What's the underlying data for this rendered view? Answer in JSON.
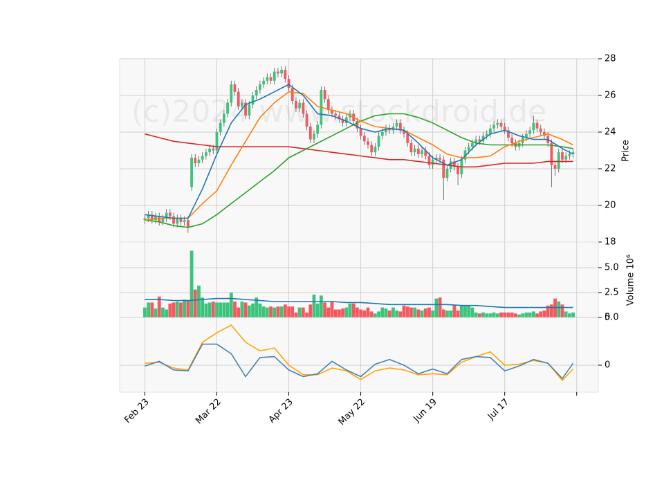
{
  "chart_data": [
    {
      "type": "candlestick",
      "ylabel": "Price",
      "watermark": "(c)2024 www.stockdroid.de",
      "up_color": "#3cc47c",
      "down_color": "#f5585e",
      "wick_color": "#555555",
      "xlim": [
        -7,
        126
      ],
      "ylim": [
        18,
        28
      ],
      "yticks": [
        18,
        20,
        22,
        24,
        26,
        28
      ],
      "grid": true,
      "open": [
        19.2,
        19.3,
        19.5,
        19.2,
        19.4,
        19.1,
        19.3,
        19.6,
        19.4,
        19.0,
        19.3,
        19.1,
        19.2,
        21.0,
        22.6,
        22.3,
        22.5,
        22.7,
        22.9,
        23.1,
        23.0,
        24.0,
        24.5,
        25.0,
        25.6,
        26.6,
        26.2,
        25.4,
        25.6,
        24.9,
        25.5,
        26.0,
        26.3,
        26.6,
        26.8,
        27.0,
        26.8,
        27.3,
        27.2,
        27.4,
        26.9,
        26.4,
        25.7,
        25.3,
        25.6,
        25.0,
        24.3,
        23.6,
        23.9,
        24.4,
        26.3,
        25.8,
        25.2,
        25.0,
        24.9,
        24.7,
        24.5,
        24.8,
        25.0,
        24.6,
        24.2,
        23.8,
        23.5,
        23.3,
        22.9,
        23.2,
        23.8,
        24.0,
        24.2,
        24.1,
        24.3,
        24.5,
        24.1,
        23.9,
        23.4,
        22.9,
        23.1,
        22.8,
        23.0,
        22.7,
        22.2,
        22.5,
        22.6,
        22.5,
        21.5,
        22.0,
        22.4,
        22.1,
        21.7,
        22.5,
        23.0,
        23.2,
        23.4,
        23.6,
        23.5,
        23.8,
        23.9,
        24.2,
        24.4,
        24.5,
        24.3,
        24.1,
        23.7,
        23.4,
        23.2,
        23.4,
        23.7,
        23.9,
        24.1,
        24.5,
        24.2,
        24.0,
        23.8,
        23.4,
        22.2,
        22.0,
        22.9,
        22.5,
        22.7,
        22.8
      ],
      "high": [
        19.5,
        19.7,
        19.7,
        19.6,
        19.6,
        19.5,
        19.8,
        19.8,
        19.6,
        19.5,
        19.5,
        19.4,
        19.4,
        22.8,
        22.8,
        22.7,
        22.9,
        23.1,
        23.3,
        23.3,
        24.2,
        24.7,
        25.2,
        25.8,
        26.8,
        26.8,
        26.4,
        25.8,
        25.8,
        25.7,
        26.2,
        26.5,
        26.8,
        27.0,
        27.2,
        27.2,
        27.5,
        27.5,
        27.6,
        27.6,
        27.1,
        26.6,
        25.9,
        25.8,
        25.8,
        25.2,
        24.5,
        24.1,
        24.6,
        26.5,
        26.5,
        26.0,
        25.4,
        25.2,
        25.1,
        24.9,
        25.0,
        25.2,
        25.2,
        24.8,
        24.4,
        24.0,
        23.7,
        23.5,
        23.4,
        24.0,
        24.2,
        24.4,
        24.4,
        24.5,
        24.7,
        24.7,
        24.3,
        24.1,
        23.6,
        23.3,
        23.3,
        23.2,
        23.2,
        22.9,
        22.7,
        22.8,
        22.8,
        22.7,
        22.2,
        22.6,
        22.6,
        22.3,
        22.7,
        23.2,
        23.4,
        23.6,
        23.8,
        23.8,
        24.0,
        24.1,
        24.4,
        24.6,
        24.7,
        24.7,
        24.5,
        24.3,
        23.9,
        23.6,
        23.6,
        23.9,
        24.1,
        24.3,
        24.9,
        24.7,
        24.4,
        24.2,
        24.0,
        23.6,
        22.4,
        23.1,
        23.1,
        22.9,
        23.0,
        23.1
      ],
      "low": [
        19.0,
        19.1,
        19.0,
        19.0,
        18.9,
        18.9,
        19.1,
        19.2,
        18.8,
        18.8,
        18.9,
        18.9,
        18.5,
        20.8,
        22.1,
        22.1,
        22.3,
        22.5,
        22.7,
        22.8,
        22.8,
        23.8,
        24.3,
        24.8,
        25.4,
        26.0,
        25.2,
        25.2,
        24.7,
        24.7,
        25.3,
        25.8,
        26.1,
        26.4,
        26.6,
        26.6,
        26.6,
        27.0,
        27.0,
        26.7,
        26.2,
        25.5,
        25.1,
        25.1,
        24.8,
        24.1,
        23.4,
        23.4,
        23.7,
        24.2,
        25.6,
        25.0,
        24.8,
        24.7,
        24.5,
        24.3,
        24.3,
        24.6,
        24.4,
        24.0,
        23.6,
        23.3,
        23.1,
        22.7,
        22.7,
        23.0,
        23.6,
        23.8,
        23.9,
        23.9,
        24.1,
        23.9,
        23.7,
        23.2,
        22.7,
        22.7,
        22.6,
        22.6,
        22.5,
        22.0,
        22.0,
        22.3,
        22.3,
        20.3,
        21.3,
        21.8,
        21.9,
        21.1,
        21.5,
        22.3,
        22.8,
        23.0,
        23.2,
        23.3,
        23.3,
        23.6,
        23.7,
        24.0,
        24.2,
        24.1,
        23.9,
        23.5,
        23.2,
        23.0,
        23.0,
        23.2,
        23.5,
        23.7,
        23.9,
        24.0,
        23.8,
        23.6,
        23.2,
        21.0,
        21.6,
        21.8,
        22.3,
        22.3,
        22.5,
        22.6
      ],
      "close": [
        19.3,
        19.5,
        19.2,
        19.4,
        19.1,
        19.3,
        19.6,
        19.4,
        19.0,
        19.3,
        19.1,
        19.2,
        18.8,
        22.6,
        22.3,
        22.5,
        22.7,
        22.9,
        23.1,
        23.0,
        24.0,
        24.5,
        25.0,
        25.6,
        26.6,
        26.2,
        25.4,
        25.6,
        24.9,
        25.5,
        26.0,
        26.3,
        26.6,
        26.8,
        27.0,
        26.8,
        27.3,
        27.2,
        27.4,
        26.9,
        26.4,
        25.7,
        25.3,
        25.6,
        25.0,
        24.3,
        23.6,
        23.9,
        24.4,
        26.3,
        25.8,
        25.2,
        25.0,
        24.9,
        24.7,
        24.5,
        24.8,
        25.0,
        24.6,
        24.2,
        23.8,
        23.5,
        23.3,
        22.9,
        23.2,
        23.8,
        24.0,
        24.2,
        24.1,
        24.3,
        24.5,
        24.1,
        23.9,
        23.4,
        22.9,
        23.1,
        22.8,
        23.0,
        22.7,
        22.2,
        22.5,
        22.6,
        22.5,
        21.5,
        22.0,
        22.4,
        22.1,
        21.7,
        22.5,
        23.0,
        23.2,
        23.4,
        23.6,
        23.5,
        23.8,
        23.9,
        24.2,
        24.4,
        24.5,
        24.3,
        24.1,
        23.7,
        23.4,
        23.2,
        23.4,
        23.7,
        23.9,
        24.1,
        24.5,
        24.2,
        24.0,
        23.8,
        23.4,
        22.2,
        22.0,
        22.9,
        22.5,
        22.7,
        22.8,
        22.9
      ],
      "line_x": [
        0,
        4,
        8,
        12,
        16,
        20,
        24,
        28,
        32,
        36,
        40,
        44,
        48,
        52,
        56,
        60,
        64,
        68,
        72,
        76,
        80,
        84,
        88,
        92,
        96,
        100,
        104,
        108,
        112,
        116,
        119
      ],
      "series": [
        {
          "color": "#d62728",
          "values": [
            23.9,
            23.7,
            23.5,
            23.4,
            23.3,
            23.2,
            23.2,
            23.2,
            23.2,
            23.2,
            23.2,
            23.1,
            23.0,
            22.9,
            22.8,
            22.7,
            22.6,
            22.5,
            22.5,
            22.4,
            22.3,
            22.2,
            22.1,
            22.1,
            22.2,
            22.3,
            22.3,
            22.3,
            22.4,
            22.4,
            22.4
          ]
        },
        {
          "color": "#2ca02c",
          "values": [
            19.2,
            19.1,
            18.9,
            18.8,
            19.0,
            19.5,
            20.1,
            20.7,
            21.3,
            21.9,
            22.6,
            23.0,
            23.4,
            23.8,
            24.2,
            24.6,
            24.9,
            25.0,
            25.0,
            24.8,
            24.5,
            24.1,
            23.7,
            23.4,
            23.3,
            23.3,
            23.3,
            23.3,
            23.3,
            23.2,
            23.1
          ]
        },
        {
          "color": "#ff7f0e",
          "values": [
            19.2,
            19.3,
            19.3,
            19.3,
            20.1,
            20.8,
            22.2,
            23.5,
            24.8,
            25.6,
            26.2,
            26.1,
            25.4,
            25.2,
            25.0,
            24.6,
            24.3,
            24.2,
            24.1,
            23.7,
            23.3,
            22.8,
            22.6,
            22.6,
            22.7,
            23.2,
            23.5,
            23.7,
            23.9,
            23.6,
            23.3
          ]
        },
        {
          "color": "#1f77b4",
          "values": [
            19.5,
            19.4,
            19.3,
            19.3,
            20.9,
            22.8,
            24.5,
            25.5,
            25.8,
            26.2,
            26.6,
            26.0,
            25.0,
            24.9,
            24.6,
            24.2,
            24.0,
            24.2,
            24.1,
            23.4,
            22.6,
            22.2,
            22.5,
            23.3,
            23.9,
            24.1,
            23.8,
            23.6,
            23.6,
            23.1,
            22.8
          ]
        }
      ]
    },
    {
      "type": "bar",
      "ylabel": "Volume  10⁶",
      "up_color": "#3cc47c",
      "down_color": "#f5585e",
      "xlim": [
        -7,
        126
      ],
      "ylim": [
        0,
        7.57
      ],
      "yticks": [
        {
          "value": 0,
          "label": "0.0"
        },
        {
          "value": 2.5,
          "label": "2.5"
        },
        {
          "value": 5,
          "label": "5.0"
        }
      ],
      "grid": true,
      "values": [
        1.0,
        1.5,
        1.5,
        0.9,
        2.1,
        1.0,
        0.8,
        1.4,
        1.5,
        1.6,
        1.5,
        1.8,
        1.7,
        6.7,
        2.8,
        3.2,
        2.0,
        1.4,
        1.5,
        1.6,
        1.5,
        1.5,
        1.5,
        1.5,
        2.5,
        1.6,
        1.0,
        1.6,
        1.5,
        1.2,
        1.4,
        2.0,
        1.4,
        1.1,
        1.0,
        1.1,
        1.0,
        1.1,
        1.1,
        1.3,
        1.1,
        1.1,
        0.5,
        1.0,
        1.0,
        0.5,
        1.3,
        2.3,
        1.4,
        2.2,
        1.5,
        1.0,
        1.6,
        0.8,
        0.8,
        0.9,
        1.0,
        1.4,
        1.4,
        1.0,
        0.8,
        0.7,
        1.0,
        0.6,
        0.4,
        0.6,
        1.0,
        0.9,
        0.7,
        1.0,
        0.7,
        0.6,
        1.2,
        1.1,
        1.0,
        1.0,
        0.8,
        0.7,
        0.9,
        1.0,
        0.7,
        1.9,
        2.0,
        0.8,
        0.7,
        0.7,
        1.2,
        0.7,
        1.2,
        1.2,
        1.2,
        1.0,
        0.5,
        0.4,
        0.5,
        0.4,
        0.4,
        0.5,
        0.4,
        0.5,
        0.5,
        0.5,
        0.5,
        0.4,
        0.3,
        0.4,
        0.5,
        0.5,
        0.6,
        0.4,
        0.6,
        0.7,
        1.2,
        1.3,
        1.9,
        1.6,
        1.3,
        0.6,
        0.4,
        0.5
      ],
      "line_x": [
        0,
        4,
        8,
        12,
        16,
        20,
        24,
        28,
        32,
        36,
        40,
        44,
        48,
        52,
        56,
        60,
        64,
        68,
        72,
        76,
        80,
        84,
        88,
        92,
        96,
        100,
        104,
        108,
        112,
        116,
        119
      ],
      "series": [
        {
          "color": "#1f77b4",
          "values": [
            1.8,
            1.8,
            1.7,
            1.7,
            1.8,
            1.9,
            1.9,
            1.8,
            1.7,
            1.6,
            1.6,
            1.6,
            1.6,
            1.6,
            1.5,
            1.5,
            1.4,
            1.3,
            1.3,
            1.3,
            1.3,
            1.3,
            1.2,
            1.2,
            1.1,
            1.0,
            1.0,
            1.0,
            1.0,
            1.0,
            1.0
          ]
        }
      ]
    },
    {
      "type": "line",
      "xlim": [
        -7,
        126
      ],
      "ylim": [
        -2.83,
        5
      ],
      "yticks": [
        0,
        5
      ],
      "grid": true,
      "xticks": [
        {
          "value": 0,
          "label": "Feb 23"
        },
        {
          "value": 20,
          "label": "Mar 22"
        },
        {
          "value": 40,
          "label": "Apr 23"
        },
        {
          "value": 60,
          "label": "May 22"
        },
        {
          "value": 80,
          "label": "Jun 19"
        },
        {
          "value": 100,
          "label": "Jul 17"
        },
        {
          "value": 120,
          "label": null
        }
      ],
      "line_x": [
        0,
        4,
        8,
        12,
        16,
        20,
        24,
        28,
        32,
        36,
        40,
        44,
        48,
        52,
        56,
        60,
        64,
        68,
        72,
        76,
        80,
        84,
        88,
        92,
        96,
        100,
        104,
        108,
        112,
        116,
        119
      ],
      "series": [
        {
          "color": "#ffa500",
          "values": [
            0.2,
            0.3,
            -0.3,
            -0.5,
            2.4,
            3.4,
            4.2,
            2.4,
            1.5,
            1.8,
            0.0,
            -1.0,
            -1.0,
            -0.3,
            -0.6,
            -1.5,
            -0.6,
            -0.3,
            -0.5,
            -1.0,
            -0.9,
            -1.0,
            0.3,
            0.9,
            1.4,
            0.0,
            0.1,
            0.5,
            0.2,
            -1.6,
            -0.4
          ]
        },
        {
          "color": "#4682b4",
          "values": [
            -0.1,
            0.4,
            -0.5,
            -0.6,
            2.2,
            2.2,
            1.2,
            -1.2,
            0.8,
            0.9,
            -0.5,
            -1.2,
            -0.9,
            0.4,
            -0.5,
            -1.2,
            0.1,
            0.6,
            0.0,
            -0.9,
            -0.4,
            -0.9,
            0.6,
            0.9,
            0.8,
            -0.6,
            -0.1,
            0.6,
            0.2,
            -1.4,
            0.2
          ]
        }
      ]
    }
  ]
}
